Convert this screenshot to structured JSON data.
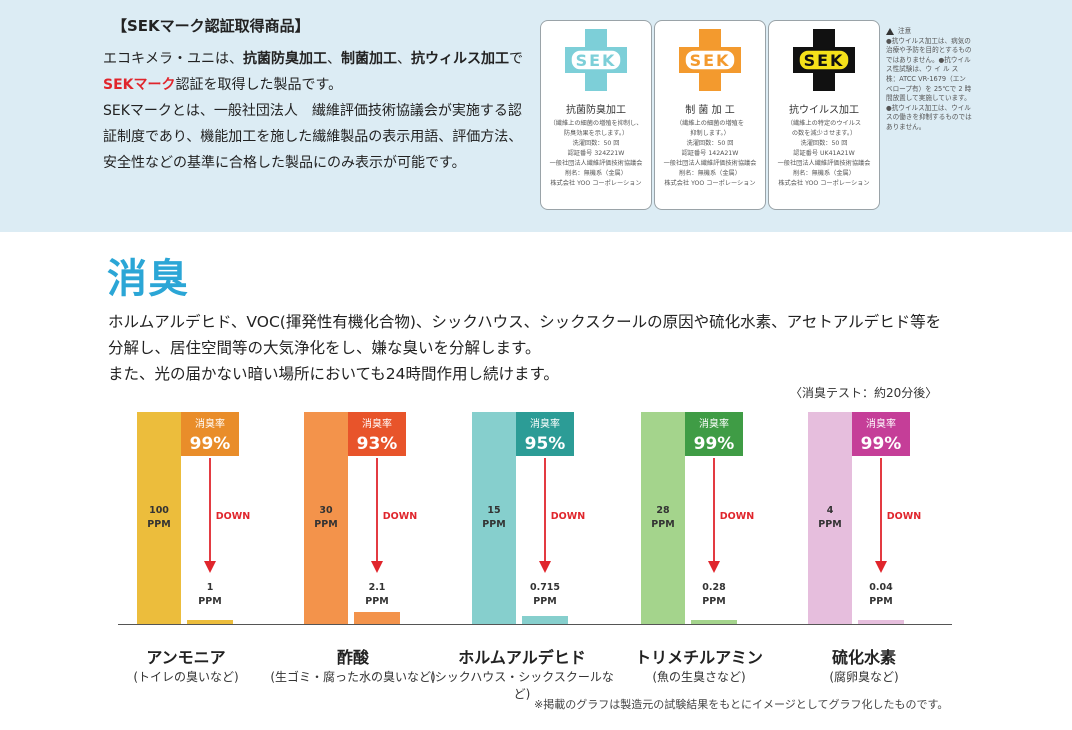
{
  "sek": {
    "heading": "【SEKマーク認証取得商品】",
    "line1_pre": "エコキメラ・ユニは、",
    "line1_b1": "抗菌防臭加工",
    "line1_sep1": "、",
    "line1_b2": "制菌加工",
    "line1_sep2": "、",
    "line1_b3": "抗ウィルス加工",
    "line1_mid": "で",
    "line1_red": "SEKマーク",
    "line1_post": "認証を取得した製品です。",
    "para2": "SEKマークとは、一般社団法人　繊維評価技術協議会が実施する認証制度であり、機能加工を施した繊維製品の表示用語、評価方法、安全性などの基準に合格した製品にのみ表示が可能です。",
    "cards": [
      {
        "logo": "SEK",
        "color": "#7dcfd8",
        "text_color": "#7dcfd8",
        "bg": "#ffffff",
        "title": "抗菌防臭加工",
        "desc": [
          "（繊維上の細菌の増殖を抑制し、",
          "防臭効果を示します。）",
          "洗濯回数：50 回",
          "認証番号 324Z21W",
          "一般社団法人繊維評価技術協議会",
          "削名：無機系（金属）",
          "株式会社 YOO コーポレーション"
        ]
      },
      {
        "logo": "SEK",
        "color": "#f39a2e",
        "text_color": "#f39a2e",
        "bg": "#ffffff",
        "title": "制 菌 加 工",
        "desc": [
          "（繊維上の細菌の増殖を",
          "抑制します。）",
          "洗濯回数：50 回",
          "認証番号 142A21W",
          "一般社団法人繊維評価技術協議会",
          "削名：無機系（金属）",
          "株式会社 YOO コーポレーション"
        ]
      },
      {
        "logo": "SEK",
        "color": "#111111",
        "text_color": "#111111",
        "bg": "#f5e11a",
        "title": "抗ウイルス加工",
        "desc": [
          "（繊維上の特定のウイルス",
          "の数を減少させます。）",
          "洗濯回数：50 回",
          "認証番号 UK41A21W",
          "一般社団法人繊維評価技術協議会",
          "削名：無機系（金属）",
          "株式会社 YOO コーポレーション"
        ]
      }
    ],
    "notes_title": "注意",
    "notes": "●抗ウイルス加工は、病気の治療や予防を目的とするものではありません。●抗ウイルス性試験は、ウ イ ル ス 株：ATCC VR-1679（エンベロープ有）を 25℃で 2 時間放置して実施しています。●抗ウイルス加工は、ウイルスの働きを抑制するものではありません。"
  },
  "section": {
    "title": "消臭",
    "body1": "ホルムアルデヒド、VOC(揮発性有機化合物)、シックハウス、シックスクールの原因や硫化水素、アセトアルデヒド等を",
    "body2": "分解し、居住空間等の大気浄化をし、嫌な臭いを分解します。",
    "body3": "また、光の届かない暗い場所においても24時間作用し続けます。",
    "test_note": "〈消臭テスト：約20分後〉"
  },
  "chart_data": {
    "type": "bar",
    "title": "",
    "xlabel": "",
    "ylabel": "",
    "unit": "PPM",
    "rate_label": "消臭率",
    "down_label": "DOWN",
    "categories": [
      "アンモニア",
      "酢酸",
      "ホルムアルデヒド",
      "トリメチルアミン",
      "硫化水素"
    ],
    "subtitles": [
      "(トイレの臭いなど)",
      "(生ゴミ・腐った水の臭いなど)",
      "(シックハウス・シックスクールなど)",
      "(魚の生臭さなど)",
      "(腐卵臭など)"
    ],
    "before_labels": [
      "100",
      "30",
      "15",
      "28",
      "4"
    ],
    "after_labels": [
      "1",
      "2.1",
      "0.715",
      "0.28",
      "0.04"
    ],
    "rates": [
      "99%",
      "93%",
      "95%",
      "99%",
      "99%"
    ],
    "bar_colors": [
      "#ecbd3c",
      "#f3934b",
      "#86cfcd",
      "#a4d48c",
      "#e6bedd"
    ],
    "rate_colors": [
      "#e98d2a",
      "#e8542a",
      "#2c9c96",
      "#3f9c45",
      "#c53e98"
    ],
    "after_colors": [
      "#ecbd3c",
      "#f3934b",
      "#86cfcd",
      "#a4d48c",
      "#e6bedd"
    ]
  },
  "footnote": "※掲載のグラフは製造元の試験結果をもとにイメージとしてグラフ化したものです。"
}
